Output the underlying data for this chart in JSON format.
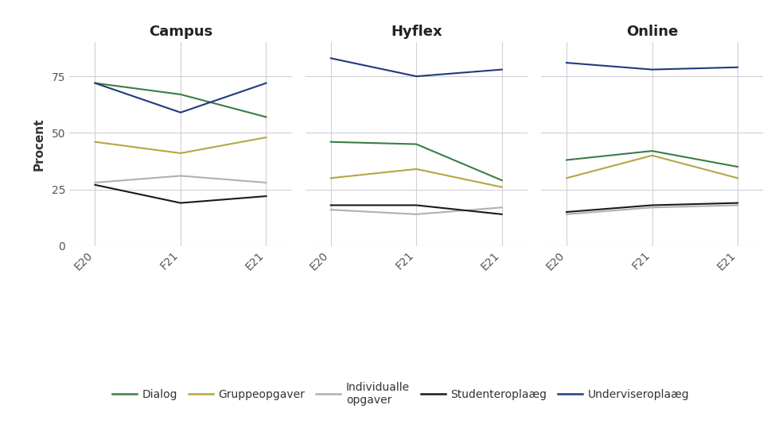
{
  "panels": [
    "Campus",
    "Hyflex",
    "Online"
  ],
  "x_labels": [
    "E20",
    "F21",
    "E21"
  ],
  "series": {
    "Dialog": {
      "color": "#3a7d44",
      "campus": [
        72,
        67,
        57
      ],
      "hyflex": [
        46,
        45,
        29
      ],
      "online": [
        38,
        42,
        35
      ]
    },
    "Gruppeopgaver": {
      "color": "#b5a642",
      "campus": [
        46,
        41,
        48
      ],
      "hyflex": [
        30,
        34,
        26
      ],
      "online": [
        30,
        40,
        30
      ]
    },
    "Individualle opgaver": {
      "color": "#b0b0b0",
      "campus": [
        28,
        31,
        28
      ],
      "hyflex": [
        16,
        14,
        17
      ],
      "online": [
        14,
        17,
        18
      ]
    },
    "Studenteroplag": {
      "color": "#1a1a1a",
      "campus": [
        27,
        19,
        22
      ],
      "hyflex": [
        18,
        18,
        14
      ],
      "online": [
        15,
        18,
        19
      ]
    },
    "Underviseroplag": {
      "color": "#1f3a7d",
      "campus": [
        72,
        59,
        72
      ],
      "hyflex": [
        83,
        75,
        78
      ],
      "online": [
        81,
        78,
        79
      ]
    }
  },
  "ylabel": "Procent",
  "ylim": [
    0,
    90
  ],
  "yticks": [
    0,
    25,
    50,
    75
  ],
  "background_color": "#ffffff",
  "plot_bg_color": "#ffffff",
  "grid_color": "#d0d0d8",
  "legend_labels": [
    "Dialog",
    "Gruppeopgaver",
    "Individualle\nopgaver",
    "Studenteroplaæg",
    "Underviseroplaæg"
  ],
  "legend_colors": [
    "#3a7d44",
    "#b5a642",
    "#b0b0b0",
    "#1a1a1a",
    "#1f3a7d"
  ],
  "title_fontsize": 13,
  "tick_fontsize": 10,
  "ylabel_fontsize": 11
}
